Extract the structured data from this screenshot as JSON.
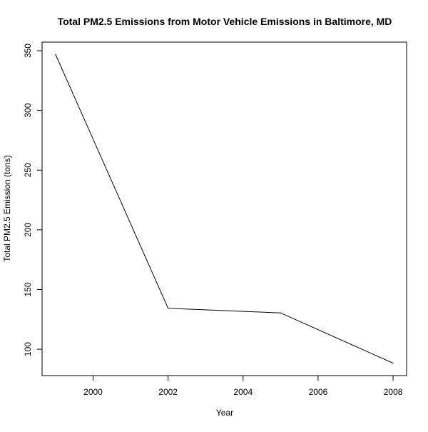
{
  "chart_data": {
    "type": "line",
    "title": "Total PM2.5 Emissions from Motor Vehicle Emissions in Baltimore, MD",
    "xlabel": "Year",
    "ylabel": "Total PM2.5 Emission (tons)",
    "x": [
      1999,
      2002,
      2005,
      2008
    ],
    "series": [
      {
        "values": [
          346.8,
          134.3,
          130.4,
          88.3
        ]
      }
    ],
    "xlim": [
      1998.64,
      2008.36
    ],
    "ylim": [
      77.9,
      357.2
    ],
    "xticks": [
      2000,
      2002,
      2004,
      2006,
      2008
    ],
    "yticks": [
      100,
      150,
      200,
      250,
      300,
      350
    ],
    "grid": false,
    "legend": "none",
    "colors": {
      "line": "#000000",
      "axis": "#000000",
      "background": "#ffffff"
    }
  }
}
